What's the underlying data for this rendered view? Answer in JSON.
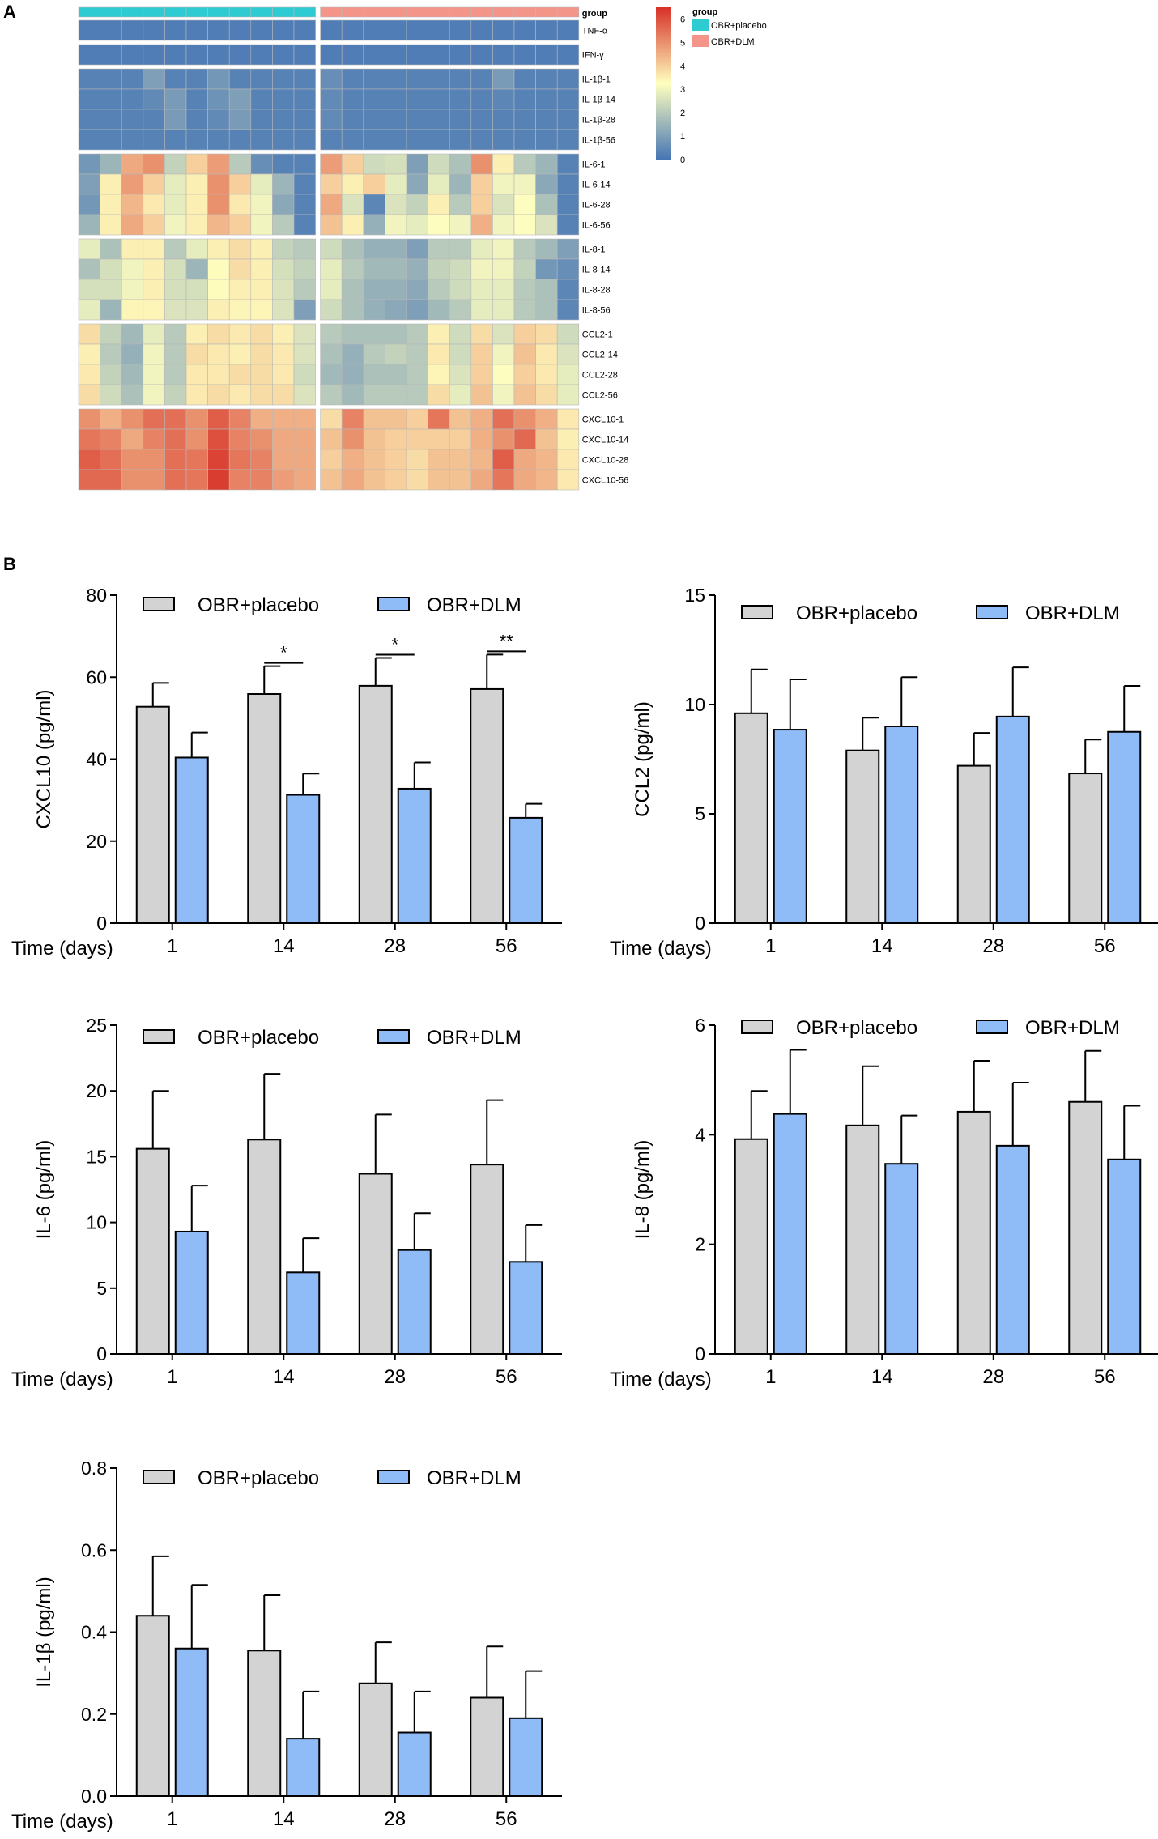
{
  "panel_labels": [
    "A",
    "B"
  ],
  "colors": {
    "placebo_group": "#2ECBD3",
    "dlm_group": "#F4958A",
    "bar_placebo": "#D3D3D3",
    "bar_dlm": "#8FBBF7",
    "heat_low": "#4575B4",
    "heat_mid": "#FFFFBF",
    "heat_high": "#D73027"
  },
  "heatmap": {
    "group_label": "group",
    "legend_title": "group",
    "legend_items": [
      "OBR+placebo",
      "OBR+DLM"
    ],
    "scale_ticks": [
      "6",
      "5",
      "4",
      "3",
      "2",
      "1",
      "0"
    ],
    "scale_max": 6.5,
    "row_labels": [
      "TNF-α",
      "IFN-γ",
      "IL-1β-1",
      "IL-1β-14",
      "IL-1β-28",
      "IL-1β-56",
      "IL-6-1",
      "IL-6-14",
      "IL-6-28",
      "IL-6-56",
      "IL-8-1",
      "IL-8-14",
      "IL-8-28",
      "IL-8-56",
      "CCL2-1",
      "CCL2-14",
      "CCL2-28",
      "CCL2-56",
      "CXCL10-1",
      "CXCL10-14",
      "CXCL10-28",
      "CXCL10-56"
    ],
    "values": [
      [
        0.2,
        0.2,
        0.2,
        0.2,
        0.2,
        0.2,
        0.2,
        0.2,
        0.2,
        0.2,
        0.2,
        0.2,
        0.2,
        0.2,
        0.2,
        0.2,
        0.2,
        0.2,
        0.2,
        0.2,
        0.2,
        0.2,
        0.2
      ],
      [
        0.2,
        0.2,
        0.2,
        0.2,
        0.2,
        0.2,
        0.2,
        0.2,
        0.2,
        0.2,
        0.2,
        0.2,
        0.2,
        0.2,
        0.2,
        0.2,
        0.2,
        0.2,
        0.2,
        0.2,
        0.2,
        0.2,
        0.2
      ],
      [
        0.3,
        0.3,
        0.3,
        1.0,
        0.3,
        0.3,
        0.8,
        0.3,
        0.3,
        0.3,
        0.3,
        0.6,
        0.3,
        0.3,
        0.3,
        0.3,
        0.3,
        0.3,
        0.3,
        0.9,
        0.3,
        0.3,
        0.3
      ],
      [
        0.3,
        0.3,
        0.3,
        0.5,
        0.9,
        0.3,
        0.7,
        1.0,
        0.3,
        0.3,
        0.3,
        0.5,
        0.3,
        0.3,
        0.3,
        0.3,
        0.3,
        0.3,
        0.3,
        0.4,
        0.3,
        0.3,
        0.3
      ],
      [
        0.3,
        0.3,
        0.3,
        0.3,
        0.9,
        0.3,
        0.5,
        0.9,
        0.3,
        0.3,
        0.3,
        0.5,
        0.3,
        0.3,
        0.3,
        0.3,
        0.3,
        0.3,
        0.3,
        0.3,
        0.3,
        0.3,
        0.3
      ],
      [
        0.3,
        0.3,
        0.3,
        0.3,
        0.3,
        0.3,
        0.3,
        0.3,
        0.3,
        0.3,
        0.3,
        0.3,
        0.3,
        0.3,
        0.3,
        0.3,
        0.3,
        0.3,
        0.3,
        0.3,
        0.3,
        0.3,
        0.3
      ],
      [
        0.8,
        1.5,
        4.6,
        5.0,
        2.2,
        4.0,
        4.8,
        2.0,
        0.6,
        0.3,
        0.3,
        4.8,
        4.0,
        2.4,
        2.5,
        1.0,
        2.4,
        1.8,
        5.0,
        3.5,
        2.0,
        1.5,
        0.3
      ],
      [
        1.0,
        3.5,
        4.8,
        4.0,
        2.8,
        3.5,
        5.0,
        4.0,
        2.8,
        1.5,
        0.3,
        4.0,
        3.5,
        4.0,
        2.8,
        1.2,
        2.8,
        1.5,
        4.0,
        3.0,
        3.0,
        1.2,
        0.3
      ],
      [
        0.8,
        3.5,
        4.4,
        3.6,
        2.8,
        3.5,
        5.0,
        3.6,
        3.0,
        1.2,
        0.3,
        4.6,
        2.6,
        0.4,
        2.6,
        2.2,
        3.5,
        2.0,
        4.0,
        2.6,
        3.2,
        1.8,
        0.3
      ],
      [
        1.5,
        3.5,
        4.6,
        4.0,
        3.0,
        3.5,
        4.4,
        4.0,
        3.0,
        2.0,
        0.3,
        4.2,
        3.5,
        1.4,
        3.0,
        2.8,
        3.2,
        3.0,
        4.5,
        3.0,
        3.2,
        2.6,
        0.3
      ],
      [
        2.8,
        1.8,
        3.5,
        3.5,
        2.0,
        2.8,
        3.5,
        3.8,
        3.5,
        2.2,
        2.0,
        2.4,
        1.8,
        1.4,
        1.4,
        1.0,
        2.0,
        2.0,
        2.8,
        3.0,
        2.0,
        1.6,
        1.0
      ],
      [
        1.8,
        2.5,
        3.0,
        3.5,
        2.5,
        1.5,
        3.3,
        3.8,
        3.5,
        2.5,
        2.2,
        2.8,
        2.0,
        1.6,
        1.6,
        1.4,
        2.2,
        2.4,
        3.0,
        3.0,
        2.2,
        0.8,
        0.6
      ],
      [
        2.5,
        2.5,
        3.0,
        3.5,
        2.5,
        2.5,
        3.3,
        3.5,
        3.5,
        2.6,
        2.0,
        2.8,
        1.8,
        1.4,
        1.4,
        1.2,
        2.0,
        2.4,
        2.8,
        2.8,
        2.0,
        1.8,
        0.4
      ],
      [
        2.8,
        1.5,
        3.4,
        3.4,
        2.6,
        2.6,
        3.5,
        3.4,
        3.4,
        2.6,
        1.0,
        2.4,
        1.8,
        1.4,
        1.2,
        1.0,
        1.6,
        2.0,
        2.8,
        2.8,
        2.0,
        1.8,
        0.4
      ],
      [
        3.8,
        2.2,
        1.6,
        2.8,
        2.0,
        3.5,
        3.8,
        3.6,
        3.8,
        3.5,
        2.6,
        2.0,
        1.8,
        1.8,
        1.8,
        2.0,
        3.5,
        2.4,
        3.8,
        2.6,
        4.0,
        3.8,
        2.4
      ],
      [
        3.5,
        2.0,
        1.4,
        3.0,
        2.0,
        3.8,
        3.6,
        3.5,
        3.8,
        3.6,
        2.6,
        1.8,
        1.4,
        2.0,
        2.2,
        2.0,
        3.6,
        2.4,
        4.0,
        3.0,
        4.2,
        3.6,
        2.6
      ],
      [
        3.6,
        2.2,
        1.6,
        3.0,
        2.0,
        3.6,
        3.6,
        3.8,
        3.8,
        3.6,
        2.4,
        1.6,
        1.4,
        1.8,
        1.8,
        2.0,
        3.4,
        2.6,
        4.0,
        3.2,
        4.0,
        3.6,
        2.8
      ],
      [
        3.8,
        2.4,
        1.8,
        3.0,
        2.2,
        3.6,
        3.8,
        3.6,
        3.8,
        3.8,
        2.6,
        2.0,
        1.6,
        2.0,
        2.0,
        2.0,
        3.8,
        2.8,
        4.2,
        3.0,
        4.2,
        3.8,
        2.8
      ],
      [
        5.0,
        4.5,
        5.0,
        5.5,
        5.5,
        5.0,
        5.8,
        5.2,
        4.5,
        4.5,
        4.5,
        3.8,
        5.2,
        4.2,
        4.2,
        4.0,
        5.4,
        4.2,
        4.5,
        5.5,
        5.0,
        4.5,
        3.6
      ],
      [
        5.4,
        5.2,
        4.6,
        5.2,
        5.5,
        5.0,
        6.0,
        5.2,
        5.0,
        4.6,
        4.6,
        4.2,
        5.0,
        4.2,
        4.0,
        4.0,
        4.0,
        4.0,
        4.5,
        5.0,
        5.6,
        4.2,
        3.5
      ],
      [
        5.8,
        5.5,
        5.0,
        5.0,
        5.5,
        5.4,
        6.2,
        5.4,
        5.2,
        4.6,
        4.6,
        4.0,
        4.5,
        4.2,
        4.0,
        3.8,
        4.2,
        4.2,
        4.4,
        5.8,
        4.6,
        4.4,
        3.6
      ],
      [
        5.6,
        5.6,
        5.0,
        5.0,
        5.5,
        5.4,
        6.3,
        5.2,
        5.2,
        4.8,
        4.6,
        4.2,
        4.6,
        4.2,
        4.0,
        3.8,
        4.2,
        4.2,
        4.6,
        5.4,
        4.6,
        4.4,
        3.6
      ]
    ]
  },
  "chart_data": [
    {
      "type": "bar",
      "categories": [
        "1",
        "14",
        "28",
        "56"
      ],
      "xlabel": "Time (days)",
      "ylabel": "CXCL10 (pg/ml)",
      "ylim": [
        0,
        80
      ],
      "yticks": [
        "0",
        "20",
        "40",
        "60",
        "80"
      ],
      "legend": [
        "OBR+placebo",
        "OBR+DLM"
      ],
      "series": [
        {
          "name": "OBR+placebo",
          "values": [
            52.8,
            55.9,
            57.9,
            57.1
          ],
          "errors": [
            5.8,
            6.8,
            6.8,
            8.4
          ]
        },
        {
          "name": "OBR+DLM",
          "values": [
            40.4,
            31.3,
            32.8,
            25.7
          ],
          "errors": [
            6.1,
            5.2,
            6.4,
            3.4
          ]
        }
      ],
      "significance": [
        "",
        "*",
        "*",
        "**"
      ]
    },
    {
      "type": "bar",
      "categories": [
        "1",
        "14",
        "28",
        "56"
      ],
      "xlabel": "Time (days)",
      "ylabel": "CCL2 (pg/ml)",
      "ylim": [
        0,
        15
      ],
      "yticks": [
        "0",
        "5",
        "10",
        "15"
      ],
      "legend": [
        "OBR+placebo",
        "OBR+DLM"
      ],
      "series": [
        {
          "name": "OBR+placebo",
          "values": [
            9.6,
            7.9,
            7.2,
            6.85
          ],
          "errors": [
            2.0,
            1.5,
            1.5,
            1.55
          ]
        },
        {
          "name": "OBR+DLM",
          "values": [
            8.85,
            9.0,
            9.45,
            8.75
          ],
          "errors": [
            2.3,
            2.25,
            2.25,
            2.1
          ]
        }
      ],
      "significance": [
        "",
        "",
        "",
        ""
      ]
    },
    {
      "type": "bar",
      "categories": [
        "1",
        "14",
        "28",
        "56"
      ],
      "xlabel": "Time (days)",
      "ylabel": "IL-6 (pg/ml)",
      "ylim": [
        0,
        25
      ],
      "yticks": [
        "0",
        "5",
        "10",
        "15",
        "20",
        "25"
      ],
      "legend": [
        "OBR+placebo",
        "OBR+DLM"
      ],
      "series": [
        {
          "name": "OBR+placebo",
          "values": [
            15.6,
            16.3,
            13.7,
            14.4
          ],
          "errors": [
            4.4,
            5.0,
            4.5,
            4.9
          ]
        },
        {
          "name": "OBR+DLM",
          "values": [
            9.3,
            6.2,
            7.9,
            7.0
          ],
          "errors": [
            3.5,
            2.6,
            2.8,
            2.8
          ]
        }
      ],
      "significance": [
        "",
        "",
        "",
        ""
      ]
    },
    {
      "type": "bar",
      "categories": [
        "1",
        "14",
        "28",
        "56"
      ],
      "xlabel": "Time (days)",
      "ylabel": "IL-8 (pg/ml)",
      "ylim": [
        0,
        6
      ],
      "yticks": [
        "0",
        "2",
        "4",
        "6"
      ],
      "legend": [
        "OBR+placebo",
        "OBR+DLM"
      ],
      "series": [
        {
          "name": "OBR+placebo",
          "values": [
            3.92,
            4.17,
            4.42,
            4.6
          ],
          "errors": [
            0.88,
            1.08,
            0.93,
            0.93
          ]
        },
        {
          "name": "OBR+DLM",
          "values": [
            4.38,
            3.47,
            3.8,
            3.55
          ],
          "errors": [
            1.17,
            0.88,
            1.15,
            0.98
          ]
        }
      ],
      "significance": [
        "",
        "",
        "",
        ""
      ]
    },
    {
      "type": "bar",
      "categories": [
        "1",
        "14",
        "28",
        "56"
      ],
      "xlabel": "Time (days)",
      "ylabel": "IL-1β (pg/ml)",
      "ylim": [
        0,
        0.8
      ],
      "yticks": [
        "0.0",
        "0.2",
        "0.4",
        "0.6",
        "0.8"
      ],
      "legend": [
        "OBR+placebo",
        "OBR+DLM"
      ],
      "series": [
        {
          "name": "OBR+placebo",
          "values": [
            0.44,
            0.355,
            0.275,
            0.24
          ],
          "errors": [
            0.145,
            0.135,
            0.1,
            0.125
          ]
        },
        {
          "name": "OBR+DLM",
          "values": [
            0.36,
            0.14,
            0.155,
            0.19
          ],
          "errors": [
            0.155,
            0.115,
            0.1,
            0.115
          ]
        }
      ],
      "significance": [
        "",
        "",
        "",
        ""
      ]
    }
  ]
}
